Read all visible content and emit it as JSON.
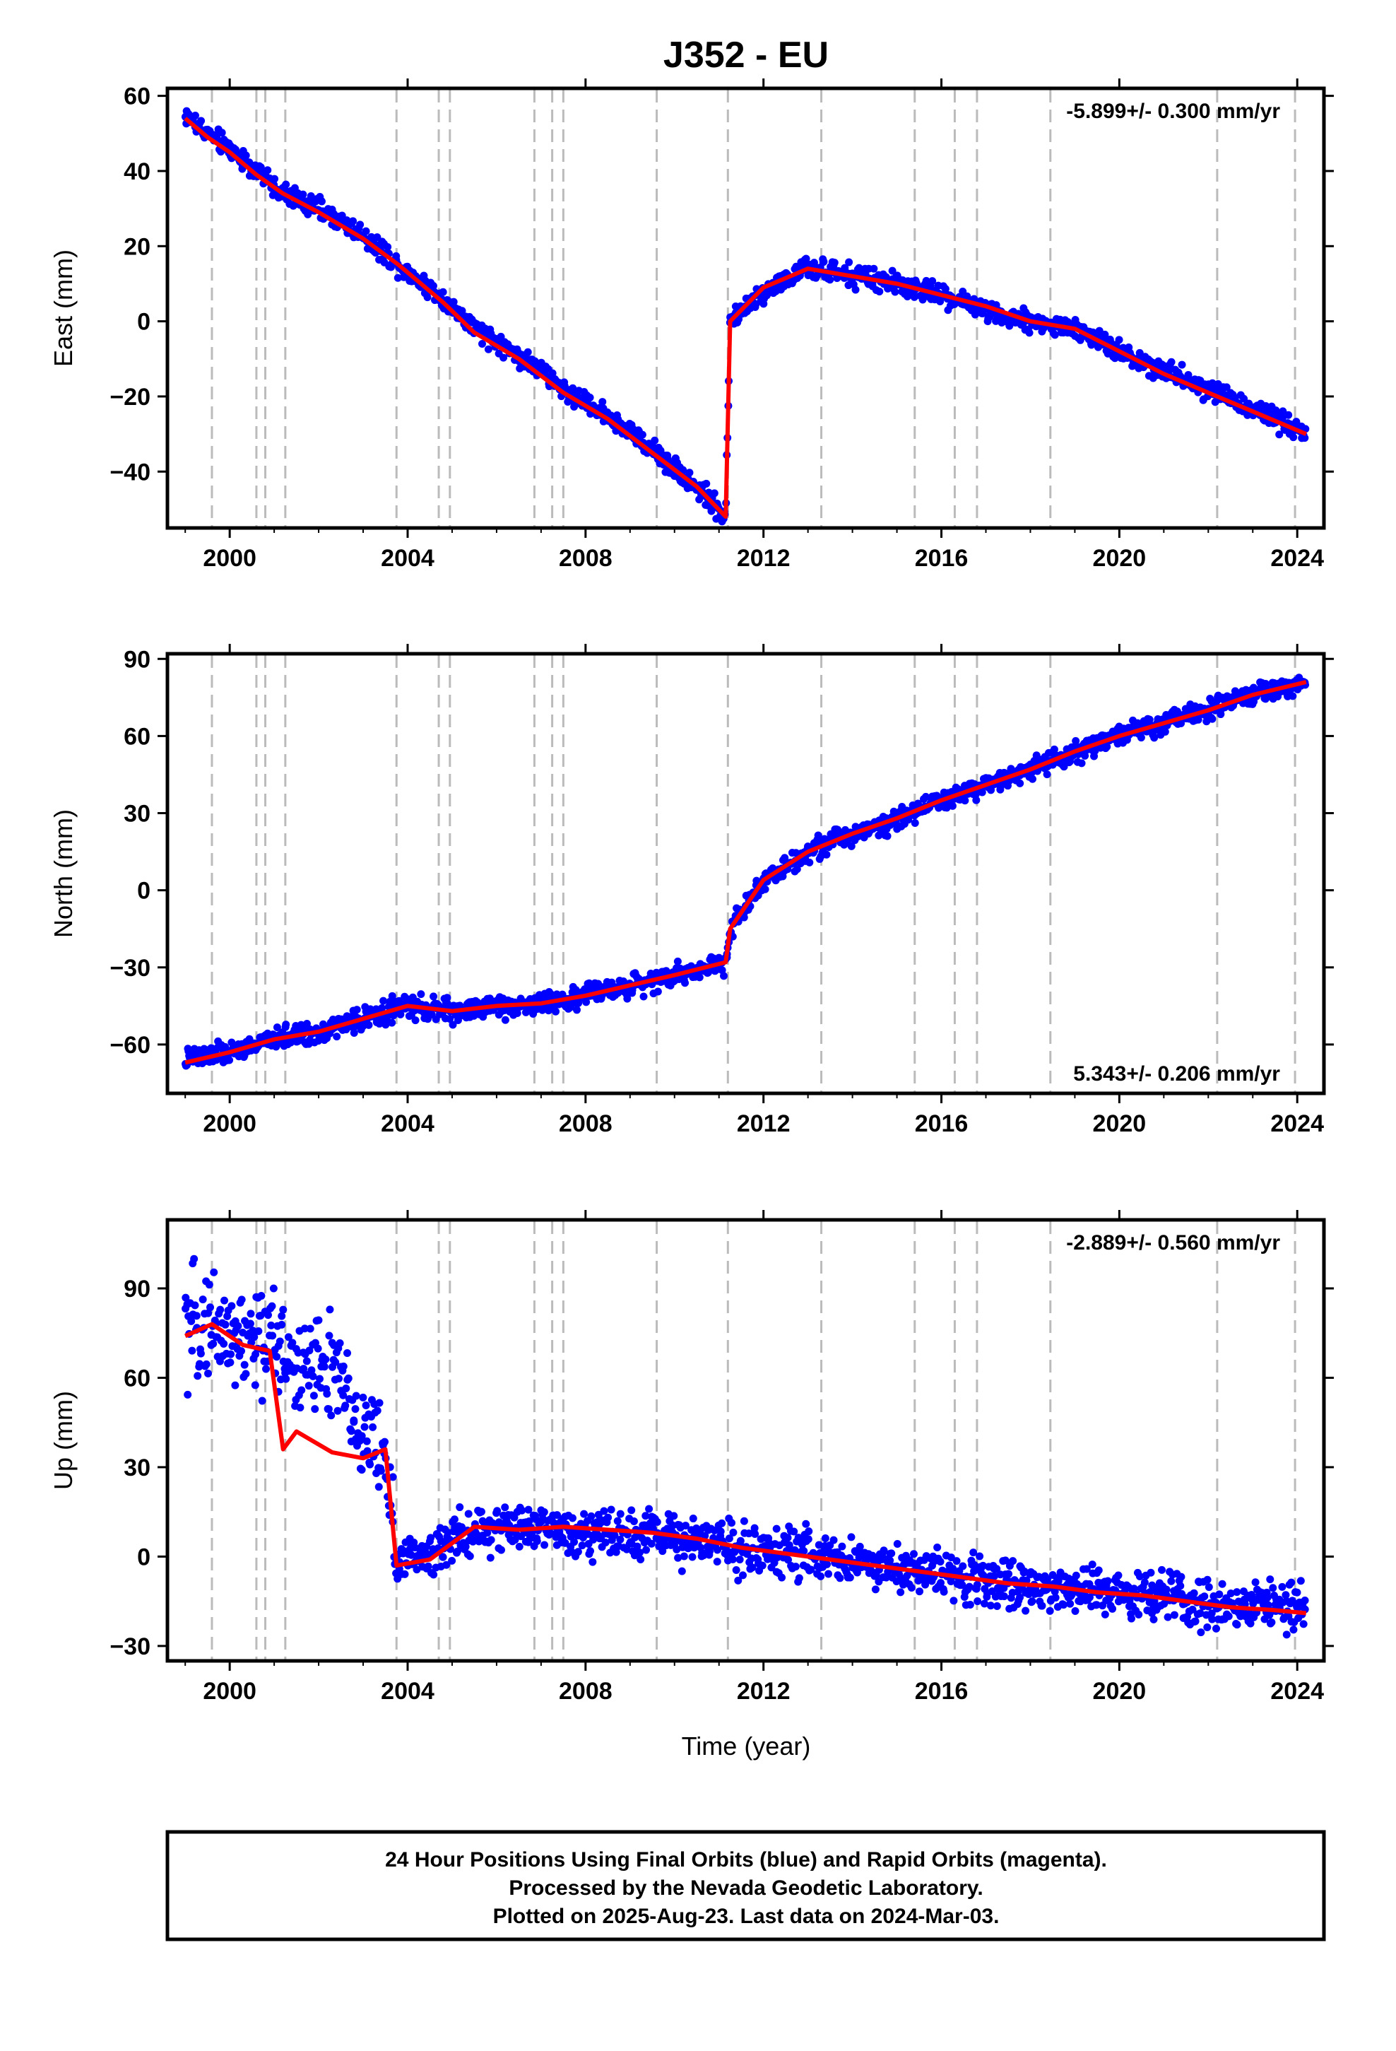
{
  "title": "J352 - EU",
  "xlabel": "Time (year)",
  "footer": {
    "line1": "24 Hour Positions Using Final Orbits (blue) and Rapid Orbits (magenta).",
    "line2": "Processed by the Nevada Geodetic Laboratory.",
    "line3": "Plotted on 2025-Aug-23. Last data on 2024-Mar-03."
  },
  "colors": {
    "observations": "#0000ff",
    "model": "#ff0000",
    "event_lines": "#bbbbbb",
    "frame": "#000000"
  },
  "chart_data": [
    {
      "type": "scatter",
      "component": "east",
      "ylabel": "East (mm)",
      "rate": "-5.899+/- 0.300 mm/yr",
      "rate_position": "top-right",
      "xlim": [
        1998.6,
        2024.6
      ],
      "ylim": [
        -55,
        62
      ],
      "xticks": [
        2000,
        2004,
        2008,
        2012,
        2016,
        2020,
        2024
      ],
      "yticks": [
        60,
        40,
        20,
        0,
        -20,
        -40
      ],
      "grid": false,
      "series": [
        {
          "kind": "observations",
          "x": [
            1999.0,
            1999.5,
            2000.0,
            2000.6,
            2001.2,
            2002.0,
            2003.0,
            2003.8,
            2004.8,
            2005.5,
            2006.5,
            2007.5,
            2008.5,
            2009.5,
            2010.5,
            2011.15,
            2011.25,
            2012.0,
            2013.0,
            2014.0,
            2015.0,
            2016.0,
            2017.0,
            2018.0,
            2019.0,
            2020.0,
            2021.0,
            2022.0,
            2023.0,
            2024.2
          ],
          "y": [
            55,
            50,
            46,
            40,
            34,
            30,
            23,
            15,
            6,
            -2,
            -9,
            -18,
            -25,
            -34,
            -44,
            -52,
            0,
            8,
            14,
            12,
            10,
            7,
            3,
            0,
            -2,
            -8,
            -13,
            -18,
            -23,
            -30
          ]
        },
        {
          "kind": "model",
          "x": [
            1999.0,
            1999.5,
            2000.0,
            2000.6,
            2001.2,
            2002.0,
            2003.0,
            2003.8,
            2004.8,
            2005.5,
            2006.5,
            2007.5,
            2008.5,
            2009.5,
            2010.5,
            2011.15,
            2011.25,
            2012.0,
            2013.0,
            2014.0,
            2015.0,
            2016.0,
            2017.0,
            2018.0,
            2019.0,
            2020.0,
            2021.0,
            2022.0,
            2023.0,
            2024.2
          ],
          "y": [
            54,
            49,
            45,
            39,
            34,
            29,
            22,
            15,
            5,
            -3,
            -10,
            -19,
            -26,
            -35,
            -44,
            -52,
            0,
            9,
            14,
            12,
            10,
            7,
            4,
            0,
            -2,
            -8,
            -14,
            -19,
            -24,
            -30
          ]
        }
      ]
    },
    {
      "type": "scatter",
      "component": "north",
      "ylabel": "North (mm)",
      "rate": "5.343+/- 0.206 mm/yr",
      "rate_position": "bottom-right",
      "xlim": [
        1998.6,
        2024.6
      ],
      "ylim": [
        -79,
        92
      ],
      "xticks": [
        2000,
        2004,
        2008,
        2012,
        2016,
        2020,
        2024
      ],
      "yticks": [
        90,
        60,
        30,
        0,
        -30,
        -60
      ],
      "grid": false,
      "series": [
        {
          "kind": "observations",
          "x": [
            1999.0,
            2000.0,
            2001.0,
            2002.0,
            2003.0,
            2004.0,
            2005.0,
            2006.0,
            2007.0,
            2008.0,
            2009.0,
            2010.0,
            2011.15,
            2011.25,
            2012.0,
            2013.0,
            2014.0,
            2015.0,
            2016.0,
            2017.0,
            2018.0,
            2019.0,
            2020.0,
            2021.0,
            2022.0,
            2023.0,
            2024.2
          ],
          "y": [
            -66,
            -63,
            -58,
            -55,
            -50,
            -45,
            -47,
            -45,
            -44,
            -41,
            -37,
            -33,
            -28,
            -15,
            4,
            15,
            22,
            28,
            35,
            41,
            47,
            54,
            60,
            65,
            70,
            76,
            81
          ]
        },
        {
          "kind": "model",
          "x": [
            1999.0,
            2000.0,
            2001.0,
            2002.0,
            2003.0,
            2004.0,
            2005.0,
            2006.0,
            2007.0,
            2008.0,
            2009.0,
            2010.0,
            2011.15,
            2011.25,
            2012.0,
            2013.0,
            2014.0,
            2015.0,
            2016.0,
            2017.0,
            2018.0,
            2019.0,
            2020.0,
            2021.0,
            2022.0,
            2023.0,
            2024.2
          ],
          "y": [
            -67,
            -63,
            -58,
            -55,
            -50,
            -45,
            -47,
            -45,
            -44,
            -41,
            -37,
            -33,
            -28,
            -15,
            4,
            15,
            22,
            28,
            35,
            41,
            47,
            54,
            60,
            65,
            70,
            76,
            81
          ]
        }
      ]
    },
    {
      "type": "scatter",
      "component": "up",
      "ylabel": "Up (mm)",
      "rate": "-2.889+/- 0.560 mm/yr",
      "rate_position": "top-right",
      "xlim": [
        1998.6,
        2024.6
      ],
      "ylim": [
        -35,
        113
      ],
      "xticks": [
        2000,
        2004,
        2008,
        2012,
        2016,
        2020,
        2024
      ],
      "yticks": [
        90,
        60,
        30,
        0,
        -30
      ],
      "grid": false,
      "series": [
        {
          "kind": "observations",
          "x": [
            1999.0,
            1999.6,
            2000.3,
            2000.9,
            2001.5,
            2002.3,
            2003.0,
            2003.5,
            2003.75,
            2004.5,
            2005.5,
            2006.5,
            2007.5,
            2008.5,
            2009.5,
            2010.5,
            2011.5,
            2012.5,
            2013.5,
            2014.5,
            2015.5,
            2016.5,
            2017.5,
            2018.5,
            2019.5,
            2020.5,
            2021.5,
            2022.5,
            2023.5,
            2024.2
          ],
          "y": [
            76,
            79,
            71,
            74,
            65,
            63,
            40,
            35,
            -2,
            2,
            9,
            10,
            9,
            8,
            7,
            5,
            3,
            1,
            0,
            -3,
            -5,
            -7,
            -9,
            -10,
            -12,
            -13,
            -15,
            -16,
            -17,
            -18
          ]
        },
        {
          "kind": "model",
          "x": [
            1999.0,
            1999.6,
            2000.3,
            2000.9,
            2001.2,
            2001.5,
            2002.3,
            2003.0,
            2003.5,
            2003.75,
            2004.5,
            2005.5,
            2006.5,
            2007.5,
            2008.5,
            2009.5,
            2010.5,
            2011.5,
            2012.5,
            2013.5,
            2014.5,
            2015.5,
            2016.5,
            2017.5,
            2018.5,
            2019.5,
            2020.5,
            2021.5,
            2022.5,
            2023.5,
            2024.2
          ],
          "y": [
            74,
            78,
            71,
            69,
            36,
            42,
            35,
            33,
            36,
            -3,
            -1,
            10,
            9,
            10,
            9,
            8,
            6,
            3,
            1,
            -1,
            -3,
            -5,
            -7,
            -9,
            -10,
            -12,
            -13,
            -15,
            -17,
            -18,
            -19
          ]
        }
      ]
    }
  ],
  "event_lines_years": [
    1999.6,
    2000.6,
    2000.8,
    2001.25,
    2003.75,
    2004.7,
    2004.95,
    2006.85,
    2007.25,
    2007.5,
    2009.6,
    2011.2,
    2013.3,
    2015.4,
    2016.3,
    2016.8,
    2018.45,
    2022.2,
    2023.95
  ]
}
